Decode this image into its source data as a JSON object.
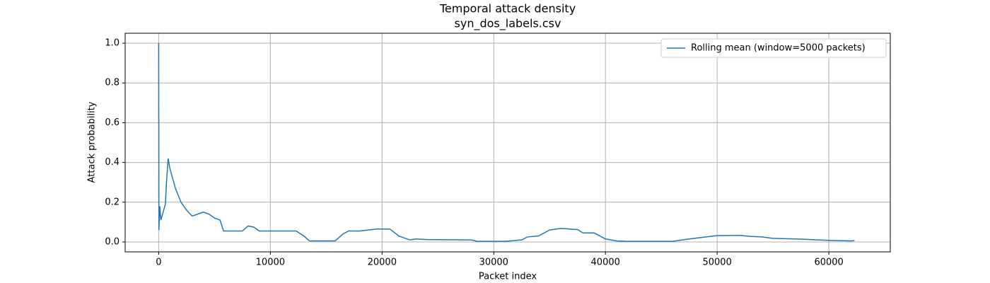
{
  "chart_data": {
    "type": "line",
    "title": "Temporal attack density",
    "subtitle": "syn_dos_labels.csv",
    "xlabel": "Packet index",
    "ylabel": "Attack probability",
    "x": [
      0,
      20,
      100,
      200,
      400,
      600,
      700,
      850,
      1000,
      1500,
      2000,
      2500,
      3000,
      3500,
      4000,
      4500,
      5000,
      5500,
      5800,
      7500,
      8000,
      8500,
      9000,
      12300,
      13000,
      13500,
      15800,
      16500,
      17000,
      18000,
      19500,
      20700,
      21500,
      22500,
      23000,
      24000,
      28000,
      28500,
      31000,
      32500,
      33000,
      34000,
      35000,
      36000,
      37500,
      38000,
      39000,
      40000,
      41000,
      42000,
      46000,
      47500,
      49000,
      50000,
      52000,
      53000,
      54000,
      55000,
      57000,
      60000,
      62000,
      62300
    ],
    "series": [
      {
        "name": "Rolling mean (window=5000 packets)",
        "color": "#1f77b4",
        "values": [
          1.0,
          0.06,
          0.18,
          0.11,
          0.15,
          0.19,
          0.3,
          0.42,
          0.37,
          0.27,
          0.2,
          0.16,
          0.13,
          0.14,
          0.15,
          0.14,
          0.12,
          0.11,
          0.055,
          0.055,
          0.08,
          0.075,
          0.055,
          0.055,
          0.03,
          0.005,
          0.005,
          0.04,
          0.055,
          0.055,
          0.065,
          0.065,
          0.03,
          0.01,
          0.015,
          0.012,
          0.01,
          0.003,
          0.003,
          0.01,
          0.025,
          0.03,
          0.06,
          0.068,
          0.062,
          0.045,
          0.045,
          0.015,
          0.005,
          0.003,
          0.003,
          0.015,
          0.025,
          0.032,
          0.033,
          0.028,
          0.025,
          0.018,
          0.015,
          0.008,
          0.005,
          0.007
        ]
      }
    ],
    "xlim": [
      -3000,
      65500
    ],
    "ylim": [
      -0.05,
      1.05
    ],
    "xticks": [
      0,
      10000,
      20000,
      30000,
      40000,
      50000,
      60000
    ],
    "yticks": [
      {
        "value": 0,
        "label": "0.0"
      },
      {
        "value": 0.2,
        "label": "0.2"
      },
      {
        "value": 0.4,
        "label": "0.4"
      },
      {
        "value": 0.6,
        "label": "0.6"
      },
      {
        "value": 0.8,
        "label": "0.8"
      },
      {
        "value": 1.0,
        "label": "1.0"
      }
    ],
    "grid": true,
    "legend": "upper-right"
  }
}
